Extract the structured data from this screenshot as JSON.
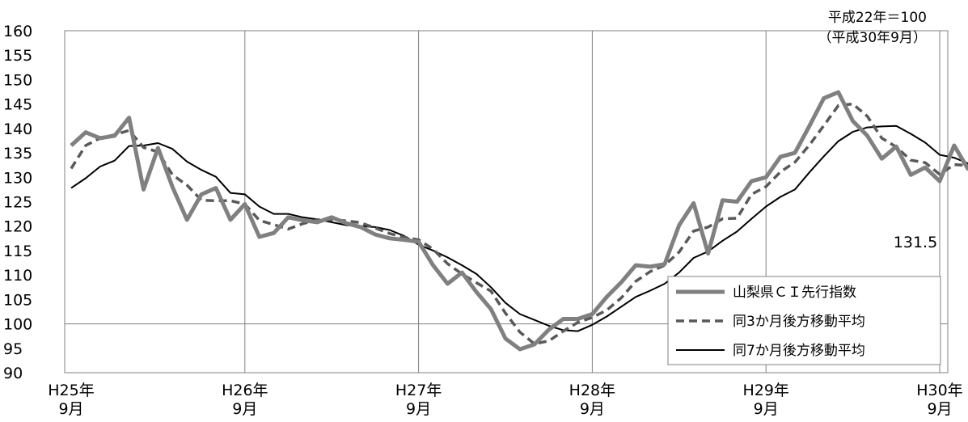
{
  "chart_data": {
    "type": "line",
    "base_note": "平成22年＝100",
    "period_note": "（平成30年9月）",
    "ylim": [
      90,
      160
    ],
    "yticks": [
      "160",
      "155",
      "150",
      "145",
      "140",
      "135",
      "130",
      "125",
      "120",
      "115",
      "110",
      "105",
      "100",
      "95",
      "90"
    ],
    "x_labels": [
      {
        "year": "H25年",
        "month": "9月"
      },
      {
        "year": "H26年",
        "month": "9月"
      },
      {
        "year": "H27年",
        "month": "9月"
      },
      {
        "year": "H28年",
        "month": "9月"
      },
      {
        "year": "H29年",
        "month": "9月"
      },
      {
        "year": "H30年",
        "month": "9月"
      }
    ],
    "last_value_label": "131.5",
    "series": [
      {
        "name": "山梨県ＣＩ先行指数",
        "style": "solid-thick",
        "color": "#808080",
        "values": [
          136.5,
          139.2,
          138.0,
          138.5,
          142.2,
          127.5,
          136.0,
          128.0,
          121.3,
          126.5,
          127.8,
          121.3,
          124.5,
          117.8,
          118.6,
          121.8,
          121.2,
          120.8,
          121.8,
          120.6,
          119.8,
          118.3,
          117.5,
          117.2,
          116.8,
          112.0,
          108.2,
          110.5,
          106.5,
          103.0,
          97.0,
          94.8,
          95.8,
          98.8,
          101.0,
          101.0,
          102.0,
          105.5,
          108.5,
          112.0,
          111.7,
          112.2,
          120.2,
          124.7,
          114.4,
          125.3,
          125.0,
          129.2,
          130.0,
          134.2,
          135.0,
          140.5,
          146.2,
          147.4,
          141.5,
          138.5,
          133.8,
          136.3,
          130.5,
          132.0,
          129.2,
          136.5,
          131.5
        ]
      },
      {
        "name": "同3か月後方移動平均",
        "style": "dashed",
        "color": "#595959",
        "values": [
          131.8,
          136.5,
          138.0,
          138.7,
          139.6,
          136.1,
          135.2,
          130.5,
          128.4,
          125.3,
          125.2,
          125.2,
          124.5,
          121.2,
          120.3,
          119.4,
          120.5,
          121.3,
          121.3,
          121.1,
          120.7,
          119.6,
          118.5,
          117.7,
          117.2,
          115.3,
          112.3,
          110.2,
          108.4,
          106.7,
          102.2,
          98.3,
          95.9,
          96.5,
          98.5,
          100.3,
          101.3,
          102.8,
          105.3,
          108.7,
          110.7,
          112.0,
          114.7,
          119.0,
          119.8,
          121.5,
          121.6,
          126.5,
          128.1,
          131.1,
          133.1,
          136.6,
          140.6,
          144.7,
          145.0,
          142.5,
          138.0,
          136.2,
          133.5,
          133.0,
          130.6,
          132.6,
          132.4
        ]
      },
      {
        "name": "同7か月後方移動平均",
        "style": "solid-thin",
        "color": "#000000",
        "values": [
          127.8,
          129.8,
          132.2,
          133.4,
          136.4,
          136.5,
          137.0,
          135.8,
          133.2,
          131.5,
          130.1,
          126.8,
          126.5,
          124.0,
          122.5,
          122.5,
          121.8,
          121.4,
          120.8,
          120.2,
          120.0,
          119.8,
          119.2,
          118.0,
          116.2,
          115.0,
          113.6,
          112.0,
          110.2,
          107.5,
          104.3,
          102.0,
          100.8,
          99.6,
          98.7,
          98.5,
          99.8,
          101.5,
          103.5,
          105.5,
          106.8,
          108.2,
          110.5,
          113.5,
          114.8,
          117.0,
          118.9,
          121.5,
          124.0,
          126.0,
          127.5,
          131.0,
          134.3,
          137.4,
          139.3,
          140.2,
          140.4,
          140.5,
          138.9,
          137.1,
          134.6,
          134.0,
          132.8
        ]
      }
    ]
  }
}
